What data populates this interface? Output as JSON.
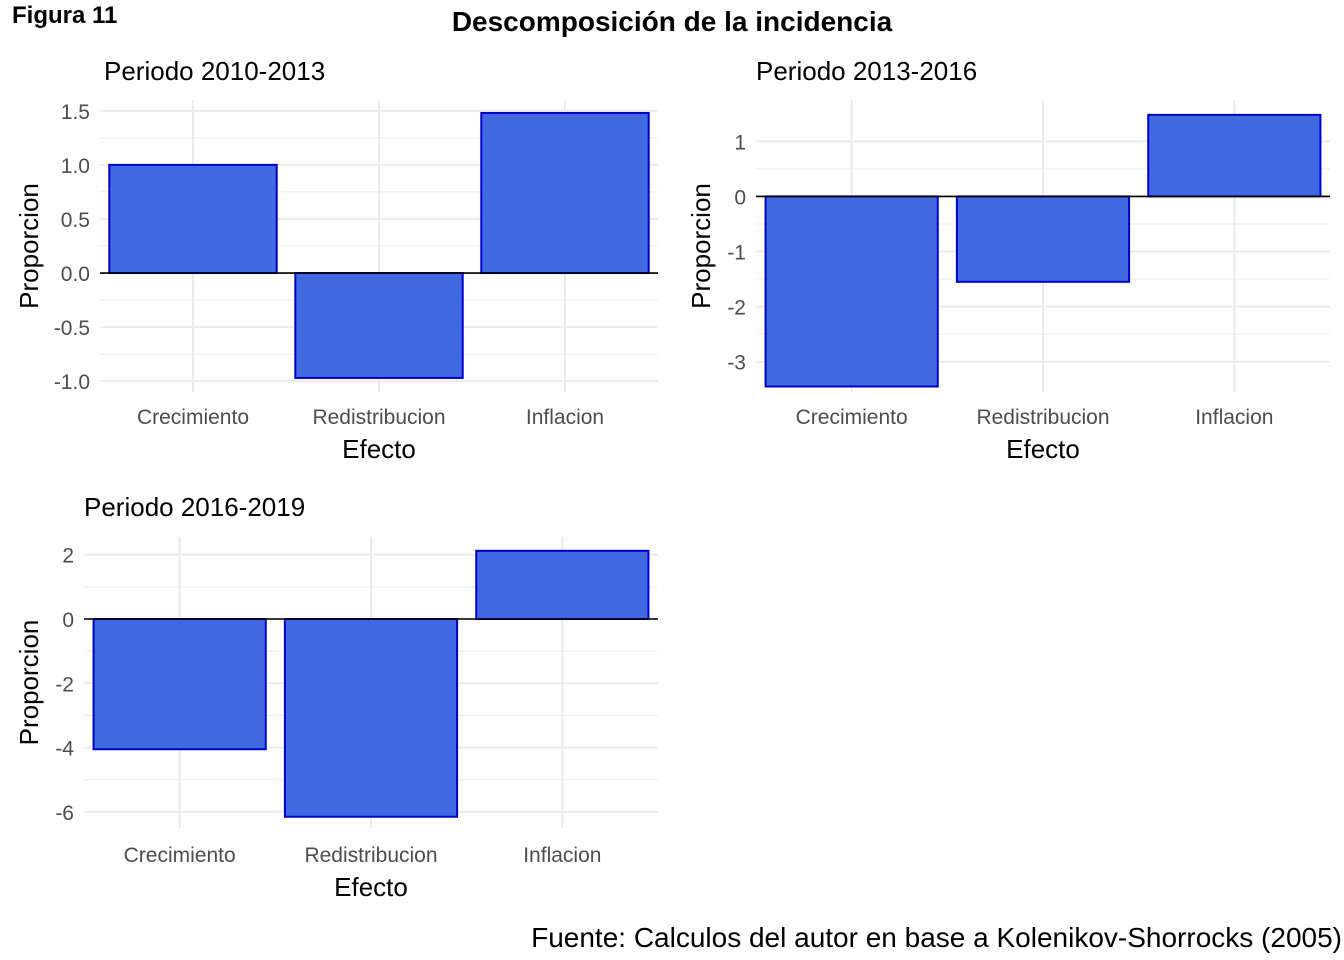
{
  "figure_label": "Figura 11",
  "title": "Descomposición de la incidencia",
  "source": "Fuente: Calculos del autor en base a Kolenikov-Shorrocks (2005)",
  "colors": {
    "bar_fill": "#4169E1",
    "bar_stroke": "#0000CD",
    "grid": "#ebebeb",
    "zero_line": "#000000",
    "tick_text": "#4d4d4d"
  },
  "chart_data": [
    {
      "type": "bar",
      "title": "Periodo 2010-2013",
      "xlabel": "Efecto",
      "ylabel": "Proporcion",
      "categories": [
        "Crecimiento",
        "Redistribucion",
        "Inflacion"
      ],
      "values": [
        1.0,
        -0.97,
        1.48
      ],
      "ylim": [
        -1.1,
        1.6
      ],
      "yticks": [
        -1.0,
        -0.5,
        0.0,
        0.5,
        1.0,
        1.5
      ],
      "ytick_labels": [
        "-1.0",
        "-0.5",
        "0.0",
        "0.5",
        "1.0",
        "1.5"
      ],
      "grid": true
    },
    {
      "type": "bar",
      "title": "Periodo 2013-2016",
      "xlabel": "Efecto",
      "ylabel": "Proporcion",
      "categories": [
        "Crecimiento",
        "Redistribucion",
        "Inflacion"
      ],
      "values": [
        -3.45,
        -1.55,
        1.48
      ],
      "ylim": [
        -3.55,
        1.75
      ],
      "yticks": [
        -3,
        -2,
        -1,
        0,
        1
      ],
      "ytick_labels": [
        "-3",
        "-2",
        "-1",
        "0",
        "1"
      ],
      "grid": true
    },
    {
      "type": "bar",
      "title": "Periodo 2016-2019",
      "xlabel": "Efecto",
      "ylabel": "Proporcion",
      "categories": [
        "Crecimiento",
        "Redistribucion",
        "Inflacion"
      ],
      "values": [
        -4.05,
        -6.15,
        2.12
      ],
      "ylim": [
        -6.5,
        2.55
      ],
      "yticks": [
        -6,
        -4,
        -2,
        0,
        2
      ],
      "ytick_labels": [
        "-6",
        "-4",
        "-2",
        "0",
        "2"
      ],
      "grid": true
    }
  ]
}
